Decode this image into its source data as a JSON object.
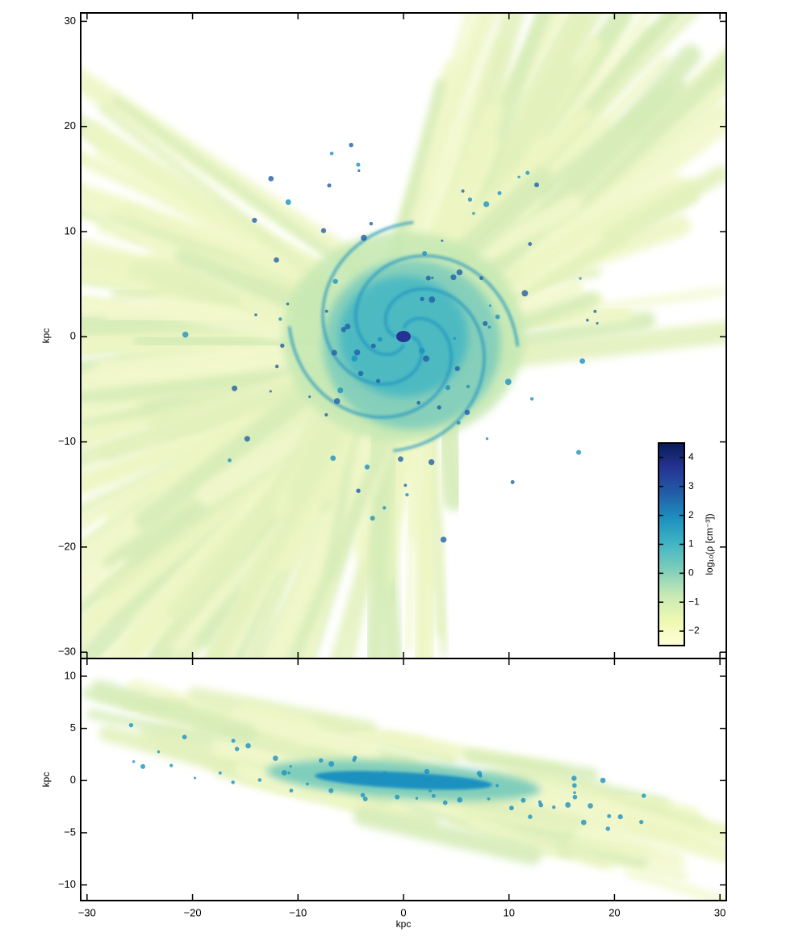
{
  "chart_data": [
    {
      "type": "image",
      "ylabel": "kpc",
      "xlim": [
        -30.6,
        30.6
      ],
      "ylim": [
        -30.6,
        30.8
      ],
      "yticks": [
        {
          "value": -30,
          "label": "−30"
        },
        {
          "value": -20,
          "label": "−20"
        },
        {
          "value": -10,
          "label": "−10"
        },
        0,
        10,
        20,
        30
      ],
      "colorbar": {
        "label": "log₁₀(ρ [cm⁻³])",
        "lim": [
          -2.5,
          4.5
        ],
        "ticks": [
          {
            "value": -2,
            "label": "−2"
          },
          {
            "value": -1,
            "label": "−1"
          },
          0,
          1,
          2,
          3,
          4
        ],
        "colors": [
          "#ffffd9",
          "#edf8b1",
          "#c7e9b4",
          "#7fcdbb",
          "#41b6c4",
          "#1d91c0",
          "#225ea8",
          "#253494",
          "#081d58"
        ]
      }
    },
    {
      "type": "image",
      "xlabel": "kpc",
      "ylabel": "kpc",
      "xlim": [
        -30.6,
        30.6
      ],
      "ylim": [
        -11.5,
        11.7
      ],
      "xticks": [
        {
          "value": -30,
          "label": "−30"
        },
        {
          "value": -20,
          "label": "−20"
        },
        {
          "value": -10,
          "label": "−10"
        },
        0,
        10,
        20,
        30
      ],
      "yticks": [
        {
          "value": -10,
          "label": "−10"
        },
        {
          "value": -5,
          "label": "−5"
        },
        0,
        5,
        10
      ]
    }
  ]
}
